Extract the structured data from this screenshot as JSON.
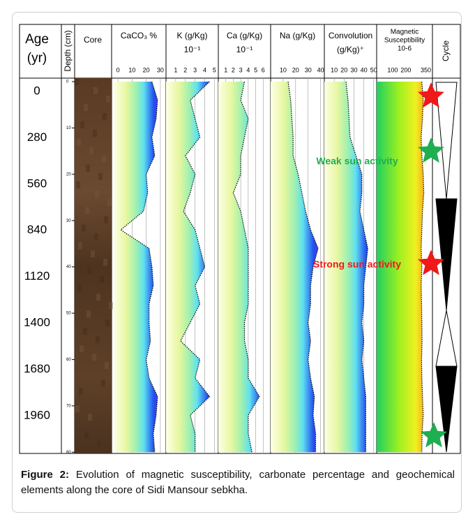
{
  "figure": {
    "age_header": [
      "Age",
      "(yr)"
    ],
    "depth_header": "Depth (cm)",
    "core_header": "Core",
    "cycle_header": "Cycle",
    "ages": [
      0,
      280,
      560,
      840,
      1120,
      1400,
      1680,
      1960
    ],
    "depth_ticks": [
      0,
      10,
      20,
      30,
      40,
      50,
      60,
      70,
      80
    ],
    "depths": [
      0,
      4,
      8,
      12,
      16,
      20,
      24,
      28,
      32,
      36,
      40,
      44,
      48,
      52,
      56,
      60,
      64,
      68,
      72,
      76,
      80
    ],
    "panels": [
      {
        "title": [
          "CaCO₃ %"
        ],
        "ticks": [
          0,
          10,
          20,
          30
        ],
        "xlim": [
          -3,
          32.5
        ],
        "values": [
          24,
          28,
          27,
          24,
          26,
          20,
          21,
          18,
          2,
          22,
          24,
          25,
          22,
          22,
          23,
          20,
          22,
          28,
          27,
          25,
          26
        ]
      },
      {
        "title": [
          "K (g/Kg)",
          "10⁻¹"
        ],
        "ticks": [
          1,
          2,
          3,
          4,
          5
        ],
        "xlim": [
          0,
          5.4
        ],
        "values": [
          4.5,
          2.5,
          3,
          3.5,
          2,
          3,
          2.5,
          1.8,
          3,
          3.5,
          4,
          3,
          3.5,
          2.5,
          1.5,
          3.5,
          3,
          4.5,
          2.5,
          3,
          3
        ]
      },
      {
        "title": [
          "Ca (g/Kg)",
          "10⁻¹"
        ],
        "ticks": [
          1,
          2,
          3,
          4,
          5,
          6
        ],
        "xlim": [
          0,
          7
        ],
        "values": [
          3.5,
          3,
          4,
          3.5,
          3,
          3,
          2,
          3,
          3.5,
          4,
          4,
          4,
          4,
          3.5,
          3.5,
          4,
          4,
          5.5,
          4,
          4,
          4.5
        ]
      },
      {
        "title": [
          "Na (g/Kg)"
        ],
        "ticks": [
          10,
          20,
          30,
          40
        ],
        "xlim": [
          0,
          43
        ],
        "values": [
          14,
          16,
          17,
          18,
          18,
          22,
          25,
          28,
          32,
          38,
          34,
          32,
          32,
          30,
          32,
          30,
          32,
          35,
          34,
          36,
          36
        ]
      },
      {
        "title": [
          "Convolution",
          "(g/Kg)⁺"
        ],
        "ticks": [
          10,
          20,
          30,
          40,
          50
        ],
        "xlim": [
          0,
          53
        ],
        "values": [
          22,
          24,
          25,
          26,
          32,
          38,
          38,
          36,
          40,
          44,
          42,
          40,
          40,
          38,
          40,
          38,
          40,
          42,
          42,
          42,
          42
        ]
      },
      {
        "title": [
          "Magnetic",
          "Susceptibility",
          "10-6"
        ],
        "ticks": [
          100,
          200,
          350
        ],
        "xlim": [
          -20,
          400
        ],
        "values": [
          320,
          330,
          325,
          315,
          320,
          330,
          335,
          325,
          320,
          315,
          320,
          315,
          318,
          320,
          322,
          318,
          320,
          325,
          330,
          322,
          320
        ]
      }
    ],
    "annotations": [
      "Weak sun activity",
      "Strong sun activity"
    ]
  },
  "caption": {
    "label": "Figure 2:",
    "text": "Evolution of magnetic susceptibility, carbonate percentage and geochemical elements along the core of Sidi Mansour sebkha."
  }
}
